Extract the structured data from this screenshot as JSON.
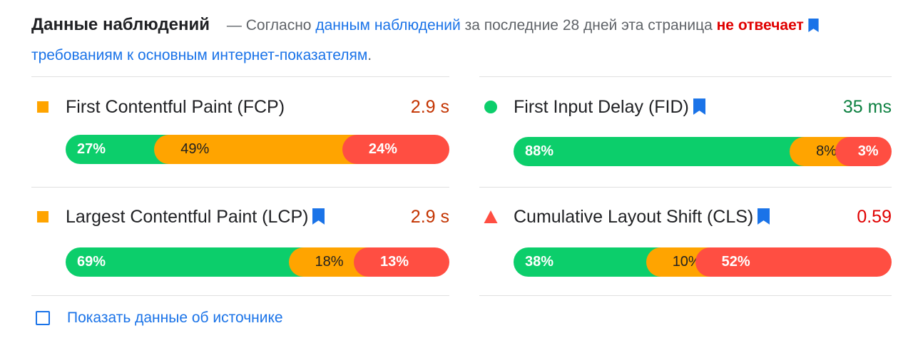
{
  "header": {
    "title": "Данные наблюдений",
    "dash": "—",
    "text_before": "Согласно",
    "link1": "данным наблюдений",
    "text_middle": "за последние 28 дней эта страница",
    "fail_text": "не отвечает",
    "link2": "требованиям к основным интернет-показателям",
    "period": "."
  },
  "colors": {
    "good": "#0cce6b",
    "average": "#ffa400",
    "poor": "#ff4e42",
    "link": "#1a73e8",
    "average_text": "#c33300",
    "good_text": "#0c8040",
    "poor_text": "#e00000"
  },
  "metrics": [
    {
      "name": "First Contentful Paint (FCP)",
      "value": "2.9 s",
      "status": "average",
      "icon": "orange-square-icon",
      "bookmark": false,
      "distribution": [
        {
          "label": "27%",
          "percent": 27
        },
        {
          "label": "49%",
          "percent": 49
        },
        {
          "label": "24%",
          "percent": 24
        }
      ]
    },
    {
      "name": "First Input Delay (FID)",
      "value": "35 ms",
      "status": "good",
      "icon": "green-circle-icon",
      "bookmark": true,
      "distribution": [
        {
          "label": "88%",
          "percent": 88
        },
        {
          "label": "8%",
          "percent": 8
        },
        {
          "label": "3%",
          "percent": 3
        }
      ]
    },
    {
      "name": "Largest Contentful Paint (LCP)",
      "value": "2.9 s",
      "status": "average",
      "icon": "orange-square-icon",
      "bookmark": true,
      "distribution": [
        {
          "label": "69%",
          "percent": 69
        },
        {
          "label": "18%",
          "percent": 18
        },
        {
          "label": "13%",
          "percent": 13
        }
      ]
    },
    {
      "name": "Cumulative Layout Shift (CLS)",
      "value": "0.59",
      "status": "poor",
      "icon": "red-triangle-icon",
      "bookmark": true,
      "distribution": [
        {
          "label": "38%",
          "percent": 38
        },
        {
          "label": "10%",
          "percent": 10
        },
        {
          "label": "52%",
          "percent": 52
        }
      ]
    }
  ],
  "toggle": {
    "label": "Показать данные об источнике",
    "checked": false
  }
}
